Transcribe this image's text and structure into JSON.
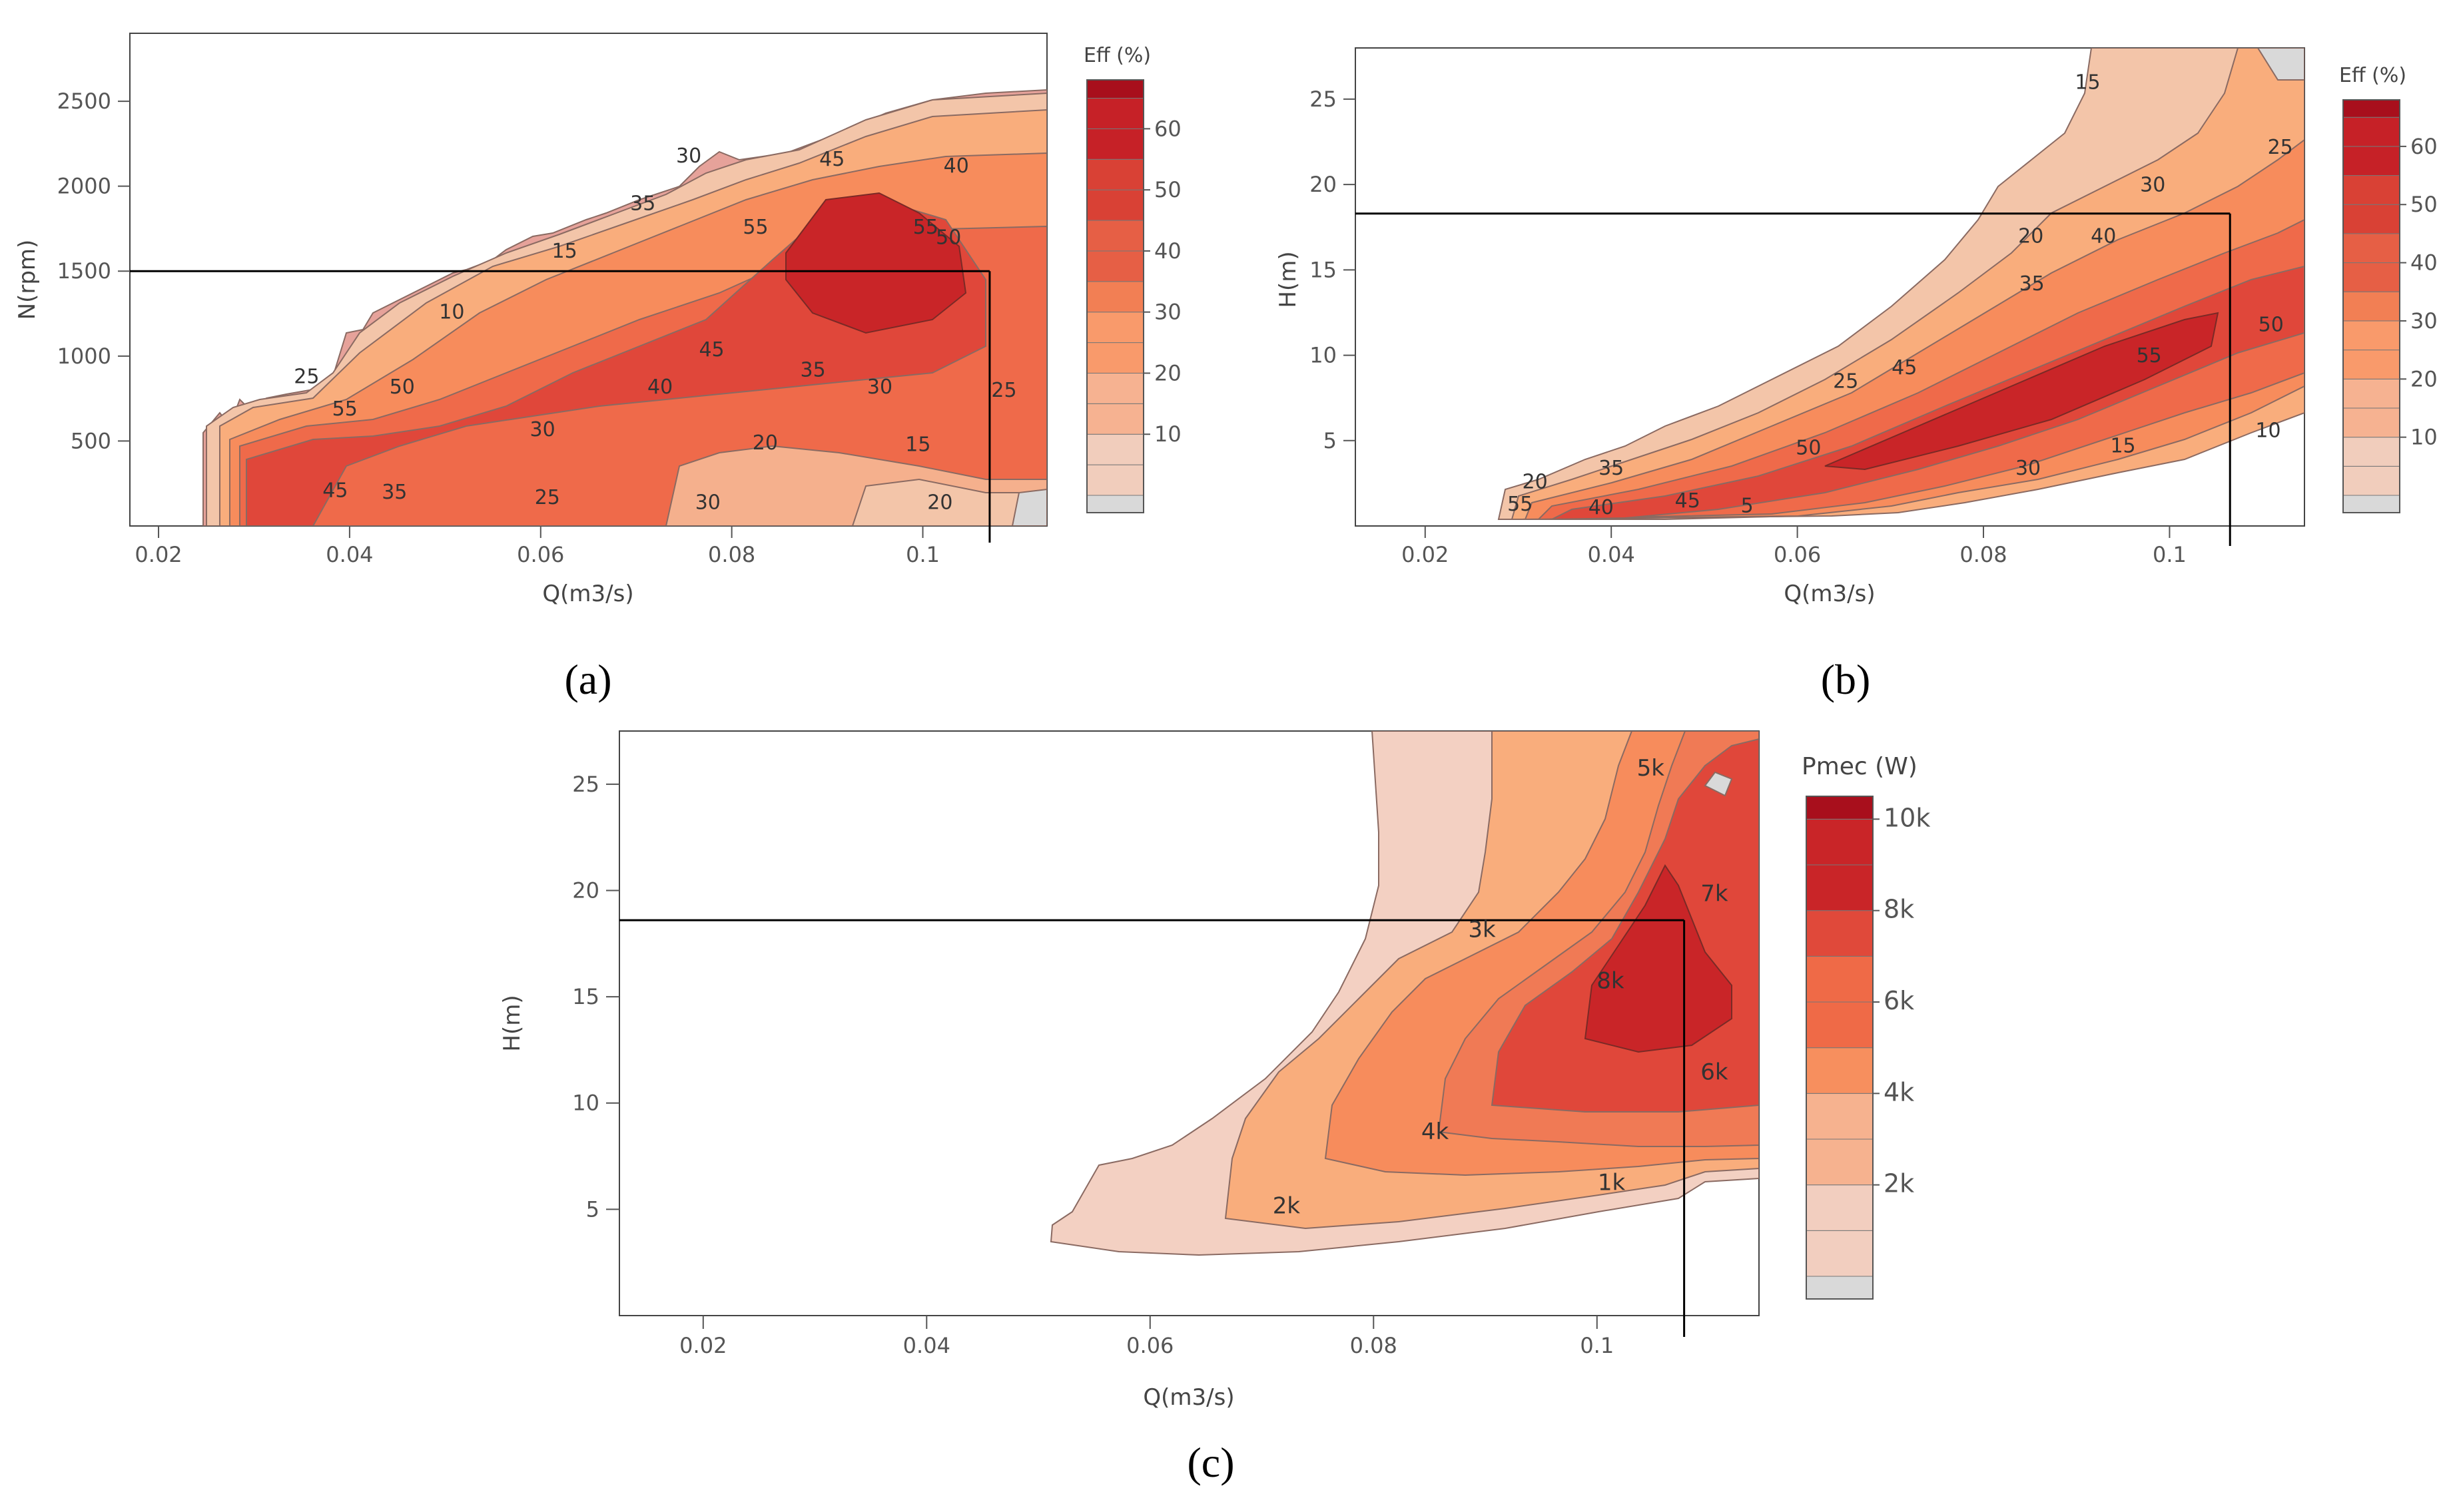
{
  "chart_data": [
    {
      "type": "heatmap",
      "id": "a",
      "caption": "(a)",
      "title": "",
      "xlabel": "Q(m3/s)",
      "ylabel": "N(rpm)",
      "xlim": [
        0.017,
        0.113
      ],
      "ylim": [
        0,
        2900
      ],
      "x_ticks": [
        0.02,
        0.04,
        0.06,
        0.08,
        0.1
      ],
      "x_tick_labels": [
        "0.02",
        "0.04",
        "0.06",
        "0.08",
        "0.1"
      ],
      "y_ticks": [
        500,
        1000,
        1500,
        2000,
        2500
      ],
      "y_tick_labels": [
        "500",
        "1000",
        "1500",
        "2000",
        "2500"
      ],
      "colorbar": {
        "title": "Eff (%)",
        "levels": [
          10,
          20,
          30,
          40,
          50,
          60
        ],
        "labels": [
          "10",
          "20",
          "30",
          "40",
          "50",
          "60"
        ],
        "max": 68
      },
      "operating_point": {
        "x": 0.107,
        "y": 1500
      },
      "contour_labels": [
        {
          "text": "30",
          "x": 0.0755,
          "y": 2140
        },
        {
          "text": "45",
          "x": 0.0905,
          "y": 2120
        },
        {
          "text": "40",
          "x": 0.1035,
          "y": 2080
        },
        {
          "text": "35",
          "x": 0.0707,
          "y": 1860
        },
        {
          "text": "55",
          "x": 0.0825,
          "y": 1720
        },
        {
          "text": "55",
          "x": 0.1003,
          "y": 1720
        },
        {
          "text": "50",
          "x": 0.1027,
          "y": 1660
        },
        {
          "text": "15",
          "x": 0.0625,
          "y": 1580
        },
        {
          "text": "10",
          "x": 0.0507,
          "y": 1220
        },
        {
          "text": "45",
          "x": 0.0779,
          "y": 1000
        },
        {
          "text": "35",
          "x": 0.0885,
          "y": 880
        },
        {
          "text": "25",
          "x": 0.0355,
          "y": 840
        },
        {
          "text": "50",
          "x": 0.0455,
          "y": 780
        },
        {
          "text": "40",
          "x": 0.0725,
          "y": 780
        },
        {
          "text": "30",
          "x": 0.0955,
          "y": 780
        },
        {
          "text": "25",
          "x": 0.1085,
          "y": 760
        },
        {
          "text": "55",
          "x": 0.0395,
          "y": 650
        },
        {
          "text": "30",
          "x": 0.0602,
          "y": 530
        },
        {
          "text": "20",
          "x": 0.0835,
          "y": 450
        },
        {
          "text": "15",
          "x": 0.0995,
          "y": 440
        },
        {
          "text": "45",
          "x": 0.0385,
          "y": 170
        },
        {
          "text": "35",
          "x": 0.0447,
          "y": 160
        },
        {
          "text": "25",
          "x": 0.0607,
          "y": 130
        },
        {
          "text": "30",
          "x": 0.0775,
          "y": 100
        },
        {
          "text": "20",
          "x": 0.1018,
          "y": 100
        }
      ]
    },
    {
      "type": "heatmap",
      "id": "b",
      "caption": "(b)",
      "title": "",
      "xlabel": "Q(m3/s)",
      "ylabel": "H(m)",
      "xlim": [
        0.0125,
        0.1145
      ],
      "ylim": [
        0,
        28
      ],
      "x_ticks": [
        0.02,
        0.04,
        0.06,
        0.08,
        0.1
      ],
      "x_tick_labels": [
        "0.02",
        "0.04",
        "0.06",
        "0.08",
        "0.1"
      ],
      "y_ticks": [
        5,
        10,
        15,
        20,
        25
      ],
      "y_tick_labels": [
        "5",
        "10",
        "15",
        "20",
        "25"
      ],
      "colorbar": {
        "title": "Eff (%)",
        "levels": [
          10,
          20,
          30,
          40,
          50,
          60
        ],
        "labels": [
          "10",
          "20",
          "30",
          "40",
          "50",
          "60"
        ],
        "max": 68
      },
      "operating_point": {
        "x": 0.1065,
        "y": 18.3
      },
      "contour_labels": [
        {
          "text": "15",
          "x": 0.0912,
          "y": 25.6
        },
        {
          "text": "25",
          "x": 0.1119,
          "y": 21.8
        },
        {
          "text": "30",
          "x": 0.0982,
          "y": 19.6
        },
        {
          "text": "20",
          "x": 0.0851,
          "y": 16.6
        },
        {
          "text": "40",
          "x": 0.0929,
          "y": 16.6
        },
        {
          "text": "35",
          "x": 0.0852,
          "y": 13.8
        },
        {
          "text": "50",
          "x": 0.1109,
          "y": 11.4
        },
        {
          "text": "55",
          "x": 0.0978,
          "y": 9.6
        },
        {
          "text": "45",
          "x": 0.0715,
          "y": 8.9
        },
        {
          "text": "25",
          "x": 0.0652,
          "y": 8.1
        },
        {
          "text": "10",
          "x": 0.1106,
          "y": 5.2
        },
        {
          "text": "15",
          "x": 0.095,
          "y": 4.3
        },
        {
          "text": "50",
          "x": 0.0612,
          "y": 4.2
        },
        {
          "text": "35",
          "x": 0.04,
          "y": 3.0
        },
        {
          "text": "30",
          "x": 0.0848,
          "y": 3.0
        },
        {
          "text": "20",
          "x": 0.0318,
          "y": 2.2
        },
        {
          "text": "45",
          "x": 0.0482,
          "y": 1.1
        },
        {
          "text": "5",
          "x": 0.0546,
          "y": 0.8
        },
        {
          "text": "55",
          "x": 0.0302,
          "y": 0.9
        },
        {
          "text": "40",
          "x": 0.0389,
          "y": 0.7
        }
      ]
    },
    {
      "type": "heatmap",
      "id": "c",
      "caption": "(c)",
      "title": "",
      "xlabel": "Q(m3/s)",
      "ylabel": "H(m)",
      "xlim": [
        0.0125,
        0.1145
      ],
      "ylim": [
        0,
        27.5
      ],
      "x_ticks": [
        0.02,
        0.04,
        0.06,
        0.08,
        0.1
      ],
      "x_tick_labels": [
        "0.02",
        "0.04",
        "0.06",
        "0.08",
        "0.1"
      ],
      "y_ticks": [
        5,
        10,
        15,
        20,
        25
      ],
      "y_tick_labels": [
        "5",
        "10",
        "15",
        "20",
        "25"
      ],
      "colorbar": {
        "title": "Pmec (W)",
        "levels": [
          2000,
          4000,
          6000,
          8000,
          10000
        ],
        "labels": [
          "2k",
          "4k",
          "6k",
          "8k",
          "10k"
        ],
        "max": 10500
      },
      "operating_point": {
        "x": 0.1078,
        "y": 18.6
      },
      "contour_labels": [
        {
          "text": "5k",
          "x": 0.1048,
          "y": 25.4
        },
        {
          "text": "7k",
          "x": 0.1105,
          "y": 19.5
        },
        {
          "text": "3k",
          "x": 0.0897,
          "y": 17.8
        },
        {
          "text": "8k",
          "x": 0.1012,
          "y": 15.4
        },
        {
          "text": "6k",
          "x": 0.1105,
          "y": 11.1
        },
        {
          "text": "4k",
          "x": 0.0855,
          "y": 8.3
        },
        {
          "text": "1k",
          "x": 0.1013,
          "y": 5.9
        },
        {
          "text": "2k",
          "x": 0.0722,
          "y": 4.8
        }
      ]
    }
  ]
}
